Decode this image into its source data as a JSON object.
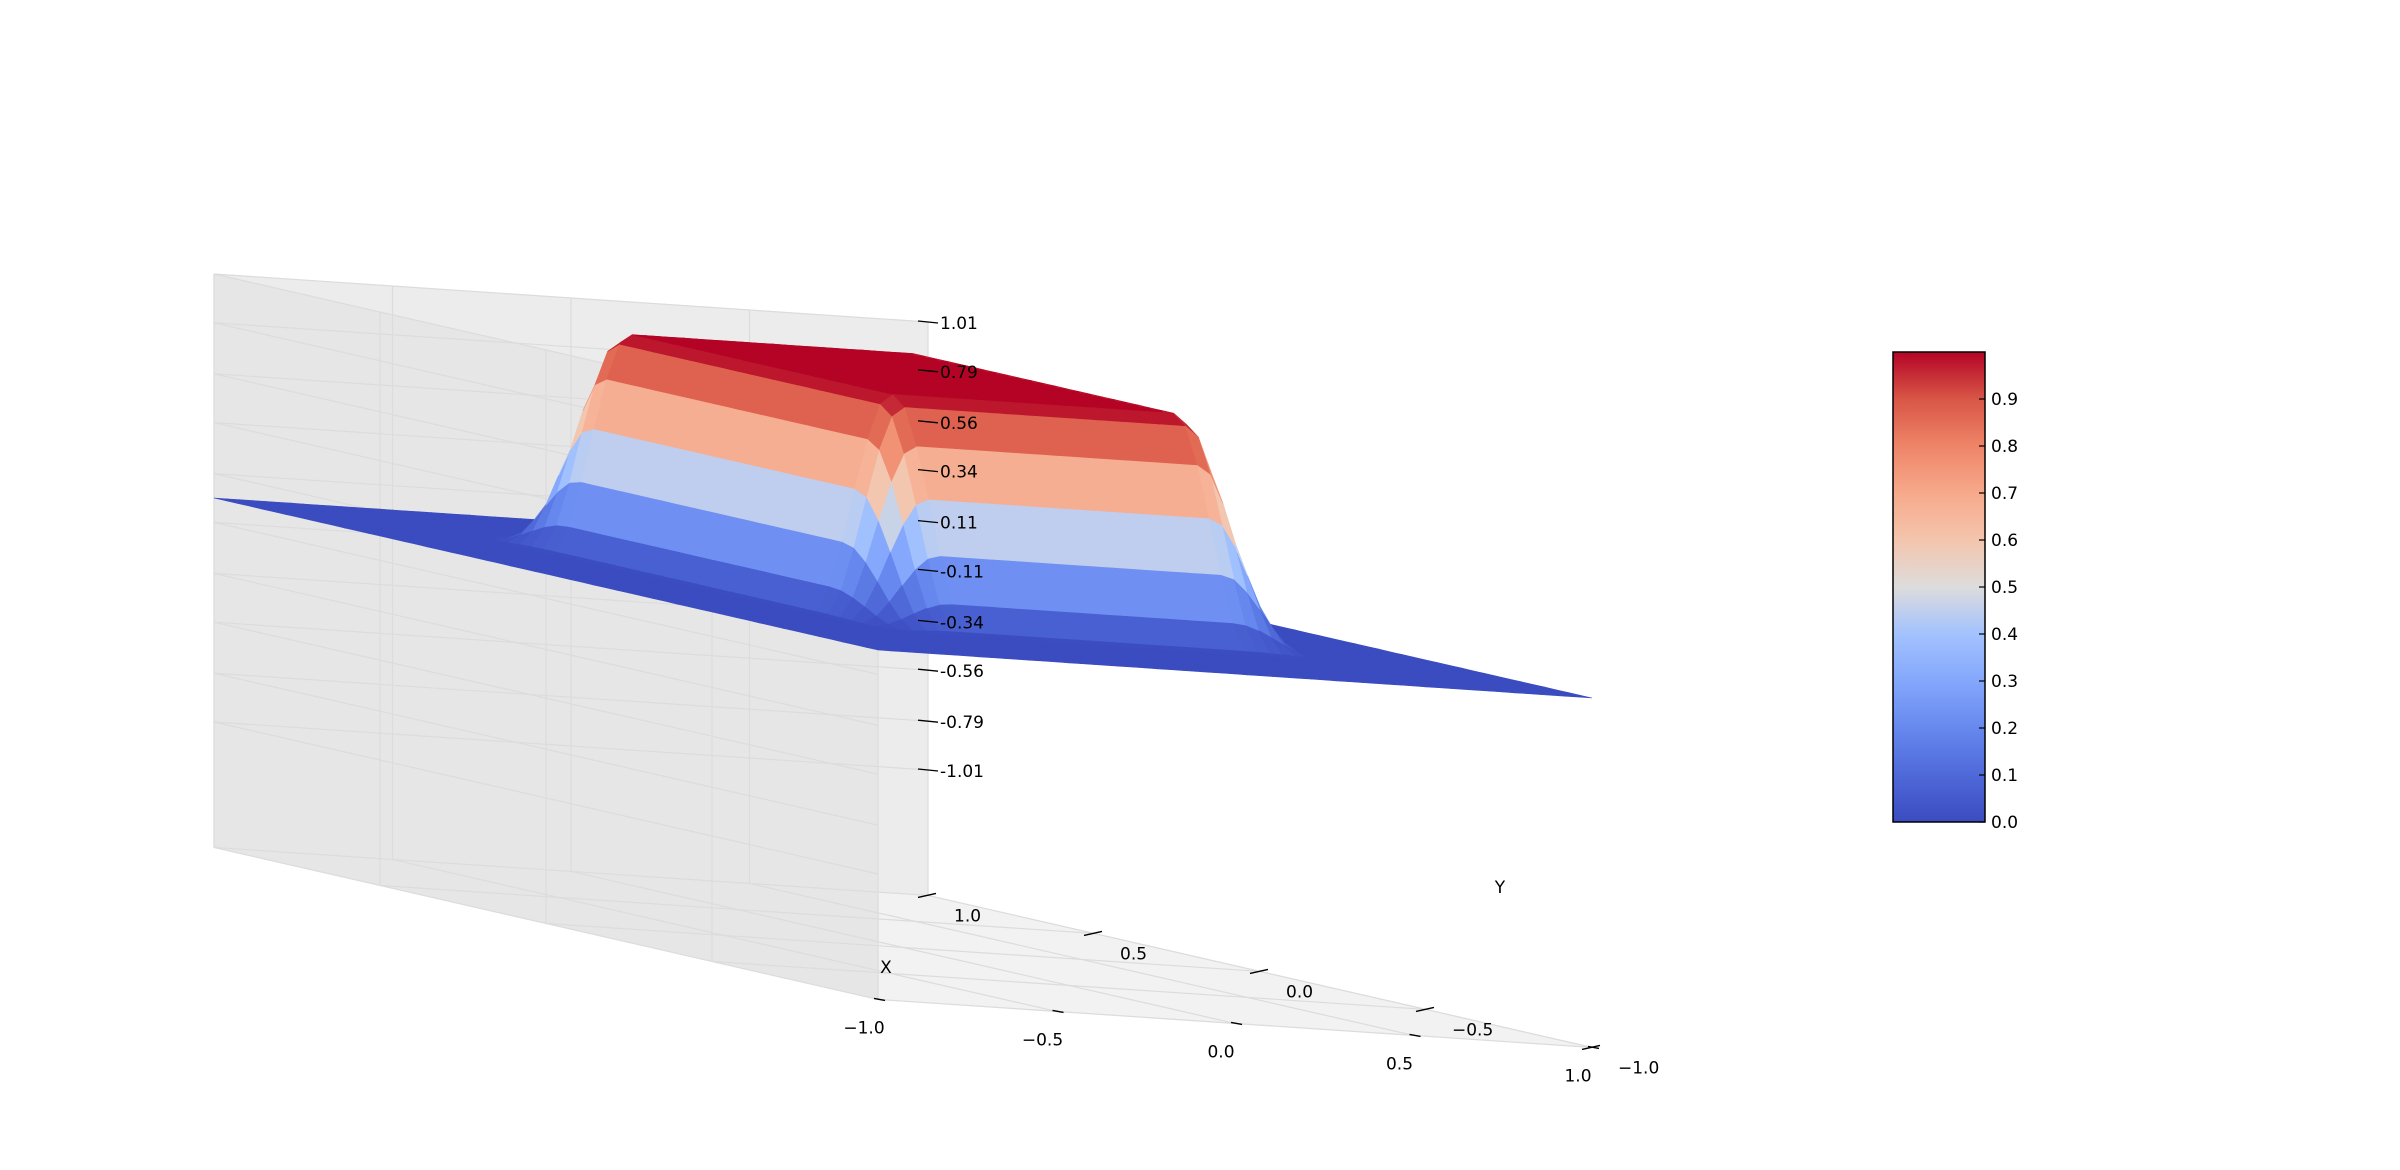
{
  "chart_data": {
    "type": "surface3d",
    "surface_function": "smooth plateau (bump) over the square x,y in [-1,1], value about 1 in the central region [-0.5,0.5] and 0 near the edges",
    "x": [
      -1.0,
      -0.75,
      -0.6,
      -0.5,
      -0.25,
      0.0,
      0.25,
      0.5,
      0.6,
      0.75,
      1.0
    ],
    "y": [
      -1.0,
      -0.75,
      -0.6,
      -0.5,
      -0.25,
      0.0,
      0.25,
      0.5,
      0.6,
      0.75,
      1.0
    ],
    "z_profile_along_axis": [
      0.0,
      0.0,
      0.05,
      0.5,
      0.97,
      1.0,
      0.97,
      0.5,
      0.05,
      0.0,
      0.0
    ],
    "xlabel": "X",
    "ylabel": "Y",
    "zlabel": "",
    "xlim": [
      -1.0,
      1.0
    ],
    "ylim": [
      -1.0,
      1.0
    ],
    "zlim": [
      -1.01,
      1.01
    ],
    "x_ticks": [
      "−1.0",
      "−0.5",
      "0.0",
      "0.5",
      "1.0"
    ],
    "y_ticks": [
      "−1.0",
      "−0.5",
      "0.0",
      "0.5",
      "1.0"
    ],
    "z_ticks": [
      "-1.01",
      "-0.79",
      "-0.56",
      "-0.34",
      "-0.11",
      "0.11",
      "0.34",
      "0.56",
      "0.79",
      "1.01"
    ],
    "colorbar": {
      "colormap": "coolwarm",
      "range": [
        0.0,
        1.0
      ],
      "ticks": [
        "0.0",
        "0.1",
        "0.2",
        "0.3",
        "0.4",
        "0.5",
        "0.6",
        "0.7",
        "0.8",
        "0.9"
      ]
    },
    "grid": true,
    "pane_color": "#f2f2f2",
    "colors": {
      "low": "#3b4cc0",
      "mid": "#dddddd",
      "high": "#b40426"
    }
  }
}
